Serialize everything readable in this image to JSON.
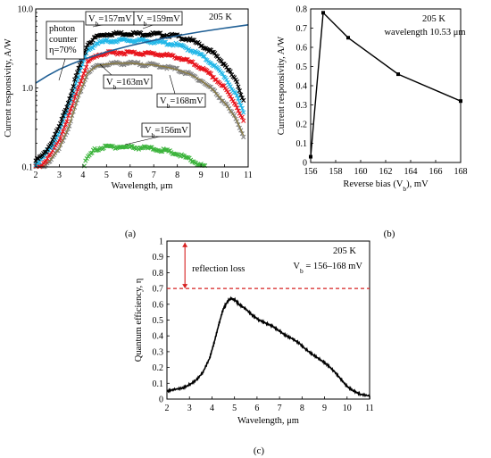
{
  "colors": {
    "black": "#000000",
    "blue": "#1f77c8",
    "cyan": "#22b7e8",
    "red": "#e8141c",
    "gray": "#808080",
    "green": "#3cb43c",
    "olive": "#8a7a3a",
    "photon": "#1f5f95",
    "dash": "#d62020"
  },
  "chart_data": [
    {
      "id": "a",
      "type": "scatter",
      "caption": "(a)",
      "xlabel": "Wavelength, μm",
      "ylabel": "Current responsivity, A/W",
      "xlim": [
        2,
        11
      ],
      "ylim": [
        0.1,
        10
      ],
      "yscale": "log",
      "xticks": [
        2,
        3,
        4,
        5,
        6,
        7,
        8,
        9,
        10,
        11
      ],
      "yticks": [
        0.1,
        1.0,
        10.0
      ],
      "yticklabels": [
        "0.1",
        "1.0",
        "10.0"
      ],
      "temperature": "205 K",
      "photon_label": [
        "photon",
        "counter",
        "η=70%"
      ],
      "series": [
        {
          "name": "Vb=157mV",
          "label_main": "V",
          "label_sub": "b",
          "label_rest": "=157mV",
          "color": "black",
          "x": [
            2.0,
            2.3,
            2.6,
            3.0,
            3.4,
            3.8,
            4.2,
            4.6,
            5.0,
            5.5,
            6.0,
            6.5,
            7.0,
            7.5,
            8.0,
            8.5,
            9.0,
            9.5,
            10.0,
            10.5,
            10.8
          ],
          "y": [
            0.12,
            0.14,
            0.19,
            0.32,
            0.7,
            1.7,
            3.6,
            4.5,
            4.8,
            4.9,
            4.9,
            4.85,
            4.8,
            4.7,
            4.5,
            4.1,
            3.5,
            2.8,
            2.0,
            1.2,
            0.7
          ]
        },
        {
          "name": "Vb=159mV",
          "label_main": "V",
          "label_sub": "b",
          "label_rest": "=159mV",
          "color": "cyan",
          "x": [
            2.0,
            2.3,
            2.6,
            3.0,
            3.4,
            3.8,
            4.2,
            4.6,
            5.0,
            5.5,
            6.0,
            6.5,
            7.0,
            7.5,
            8.0,
            8.5,
            9.0,
            9.5,
            10.0,
            10.5,
            10.8
          ],
          "y": [
            0.11,
            0.13,
            0.17,
            0.28,
            0.6,
            1.4,
            3.0,
            3.7,
            3.9,
            4.0,
            4.0,
            3.95,
            3.85,
            3.7,
            3.5,
            3.1,
            2.6,
            2.0,
            1.4,
            0.8,
            0.5
          ]
        },
        {
          "name": "Vb=163mV",
          "label_main": "V",
          "label_sub": "b",
          "label_rest": "=163mV",
          "color": "red",
          "x": [
            2.0,
            2.3,
            2.6,
            3.0,
            3.4,
            3.8,
            4.2,
            4.6,
            5.0,
            5.5,
            6.0,
            6.5,
            7.0,
            7.5,
            8.0,
            8.5,
            9.0,
            9.5,
            10.0,
            10.5,
            10.8
          ],
          "y": [
            0.1,
            0.11,
            0.14,
            0.22,
            0.45,
            1.0,
            2.1,
            2.6,
            2.75,
            2.8,
            2.8,
            2.75,
            2.7,
            2.6,
            2.45,
            2.15,
            1.8,
            1.4,
            1.0,
            0.6,
            0.38
          ]
        },
        {
          "name": "Vb=168mV",
          "label_main": "V",
          "label_sub": "b",
          "label_rest": "=168mV",
          "color": "gray",
          "x": [
            2.0,
            2.3,
            2.6,
            3.0,
            3.4,
            3.8,
            4.2,
            4.6,
            5.0,
            5.5,
            6.0,
            6.5,
            7.0,
            7.5,
            8.0,
            8.5,
            9.0,
            9.5,
            10.0,
            10.5,
            10.8
          ],
          "y": [
            0.1,
            0.1,
            0.12,
            0.17,
            0.32,
            0.75,
            1.55,
            1.9,
            2.0,
            2.05,
            2.05,
            2.0,
            1.95,
            1.85,
            1.7,
            1.5,
            1.25,
            0.95,
            0.65,
            0.4,
            0.25
          ]
        },
        {
          "name": "Vb=156mV",
          "label_main": "V",
          "label_sub": "b",
          "label_rest": "=156mV",
          "color": "green",
          "x": [
            4.0,
            4.2,
            4.5,
            4.8,
            5.1,
            5.5,
            6.0,
            6.5,
            7.0,
            7.5,
            8.0,
            8.5,
            9.0,
            9.2
          ],
          "y": [
            0.1,
            0.13,
            0.165,
            0.175,
            0.18,
            0.18,
            0.178,
            0.175,
            0.17,
            0.16,
            0.145,
            0.125,
            0.105,
            0.1
          ]
        }
      ],
      "photon_counter": {
        "x": [
          2.0,
          2.5,
          3.0,
          3.5,
          4.0,
          5.0,
          6.0,
          7.0,
          8.0,
          9.0,
          10.0,
          11.0
        ],
        "y": [
          1.15,
          1.43,
          1.72,
          2.0,
          2.29,
          2.86,
          3.43,
          4.0,
          4.58,
          5.15,
          5.72,
          6.29
        ]
      }
    },
    {
      "id": "b",
      "type": "line",
      "caption": "(b)",
      "xlabel": "Reverse bias (Vb), mV",
      "xlabel_parts": [
        "Reverse bias (V",
        "b",
        "), mV"
      ],
      "ylabel": "Current responsivity, A/W",
      "xlim": [
        156,
        168
      ],
      "ylim": [
        0,
        0.8
      ],
      "xticks": [
        156,
        158,
        160,
        162,
        164,
        166,
        168
      ],
      "yticks": [
        0,
        0.1,
        0.2,
        0.3,
        0.4,
        0.5,
        0.6,
        0.7,
        0.8
      ],
      "yticklabels": [
        "0",
        "0.1",
        "0.2",
        "0.3",
        "0.4",
        "0.5",
        "0.6",
        "0.7",
        "0.8"
      ],
      "temperature": "205 K",
      "wavelength_note": "wavelength  10.53 μm",
      "series": [
        {
          "x": [
            156,
            157,
            159,
            163,
            168
          ],
          "y": [
            0.03,
            0.78,
            0.65,
            0.46,
            0.32
          ]
        }
      ]
    },
    {
      "id": "c",
      "type": "line",
      "caption": "(c)",
      "xlabel": "Wavelength,  μm",
      "ylabel": "Quantum efficiency, η",
      "xlim": [
        2,
        11
      ],
      "ylim": [
        0,
        1
      ],
      "xticks": [
        2,
        3,
        4,
        5,
        6,
        7,
        8,
        9,
        10,
        11
      ],
      "yticks": [
        0,
        0.1,
        0.2,
        0.3,
        0.4,
        0.5,
        0.6,
        0.7,
        0.8,
        0.9,
        1
      ],
      "yticklabels": [
        "0",
        "0.1",
        "0.2",
        "0.3",
        "0.4",
        "0.5",
        "0.6",
        "0.7",
        "0.8",
        "0.9",
        "1"
      ],
      "temperature": "205 K",
      "bias_note": [
        "V",
        "b",
        " = 156–168 mV"
      ],
      "reflection_label": "reflection loss",
      "reflection_level": 0.7,
      "series": [
        {
          "x": [
            2.0,
            2.3,
            2.7,
            3.0,
            3.3,
            3.6,
            3.9,
            4.1,
            4.3,
            4.5,
            4.7,
            4.85,
            5.0,
            5.2,
            5.5,
            5.8,
            6.1,
            6.4,
            6.7,
            7.0,
            7.3,
            7.6,
            7.9,
            8.2,
            8.5,
            8.8,
            9.1,
            9.4,
            9.7,
            10.0,
            10.3,
            10.6,
            11.0
          ],
          "y": [
            0.05,
            0.06,
            0.07,
            0.09,
            0.12,
            0.17,
            0.26,
            0.36,
            0.47,
            0.57,
            0.62,
            0.635,
            0.63,
            0.6,
            0.57,
            0.53,
            0.5,
            0.48,
            0.46,
            0.43,
            0.4,
            0.38,
            0.35,
            0.31,
            0.28,
            0.25,
            0.22,
            0.18,
            0.13,
            0.08,
            0.05,
            0.03,
            0.02
          ]
        }
      ]
    }
  ]
}
